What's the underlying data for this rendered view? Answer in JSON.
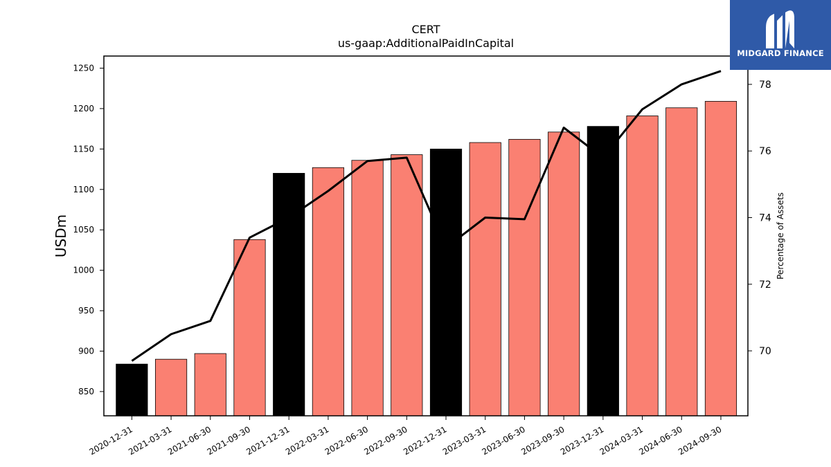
{
  "chart_data": {
    "type": "bar",
    "title": "CERT",
    "subtitle": "us-gaap:AdditionalPaidInCapital",
    "ylabel": "USDm",
    "y2label": "Percentage of Assets",
    "categories": [
      "2020-12-31",
      "2021-03-31",
      "2021-06-30",
      "2021-09-30",
      "2021-12-31",
      "2022-03-31",
      "2022-06-30",
      "2022-09-30",
      "2022-12-31",
      "2023-03-31",
      "2023-06-30",
      "2023-09-30",
      "2023-12-31",
      "2024-03-31",
      "2024-06-30",
      "2024-09-30"
    ],
    "series": [
      {
        "type": "bar",
        "values": [
          884,
          890,
          897,
          1038,
          1120,
          1127,
          1136,
          1143,
          1150,
          1158,
          1162,
          1171,
          1178,
          1191,
          1201,
          1209
        ],
        "colors": [
          "#000000",
          "#fa8072",
          "#fa8072",
          "#fa8072",
          "#000000",
          "#fa8072",
          "#fa8072",
          "#fa8072",
          "#000000",
          "#fa8072",
          "#fa8072",
          "#fa8072",
          "#000000",
          "#fa8072",
          "#fa8072",
          "#fa8072"
        ]
      },
      {
        "type": "line",
        "axis": "right",
        "color": "#000000",
        "values": [
          69.7,
          70.5,
          70.9,
          73.4,
          74.0,
          74.8,
          75.7,
          75.8,
          73.1,
          74.0,
          73.95,
          76.7,
          75.8,
          77.25,
          78.0,
          78.4
        ]
      }
    ],
    "ylim": [
      820,
      1265
    ],
    "y_ticks": [
      850,
      900,
      950,
      1000,
      1050,
      1100,
      1150,
      1200,
      1250
    ],
    "y2lim": [
      68.05,
      78.85
    ],
    "y2_ticks": [
      70,
      72,
      74,
      76,
      78
    ],
    "grid": false
  },
  "logo": {
    "text": "MIDGARD FINANCE",
    "color": "#2f5aa8"
  }
}
